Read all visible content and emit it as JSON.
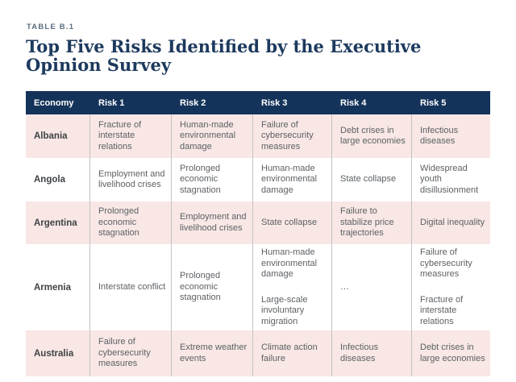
{
  "page": {
    "label": "TABLE B.1",
    "title": "Top Five Risks Identified by the Executive Opinion Survey"
  },
  "colors": {
    "navy": "#14335a",
    "title_navy": "#1d3a5e",
    "label_gray": "#5d6e7e",
    "pink": "#f8e7e5",
    "cell_text": "#5d6165",
    "economy_text": "#3f4246",
    "divider": "#c3c3c3",
    "dash": "#b6b9bb",
    "header_text": "#ffffff"
  },
  "table": {
    "headers": [
      "Economy",
      "Risk 1",
      "Risk 2",
      "Risk 3",
      "Risk 4",
      "Risk 5"
    ],
    "rows": [
      {
        "economy": "Albania",
        "risks": [
          [
            "Fracture of interstate relations"
          ],
          [
            "Human-made environmental damage"
          ],
          [
            "Failure of cybersecurity measures"
          ],
          [
            "Debt crises in large economies"
          ],
          [
            "Infectious diseases"
          ]
        ]
      },
      {
        "economy": "Angola",
        "risks": [
          [
            "Employment and livelihood crises"
          ],
          [
            "Prolonged economic stagnation"
          ],
          [
            "Human-made environmental damage"
          ],
          [
            "State collapse"
          ],
          [
            "Widespread youth disillusionment"
          ]
        ]
      },
      {
        "economy": "Argentina",
        "risks": [
          [
            "Prolonged economic stagnation"
          ],
          [
            "Employment and livelihood crises"
          ],
          [
            "State collapse"
          ],
          [
            "Failure to stabilize price trajectories"
          ],
          [
            "Digital inequality"
          ]
        ]
      },
      {
        "economy": "Armenia",
        "risks": [
          [
            "Interstate conflict"
          ],
          [
            "Prolonged economic stagnation"
          ],
          [
            "Human-made environmental damage",
            "Large-scale involuntary migration"
          ],
          [
            "…"
          ],
          [
            "Failure of cybersecurity measures",
            "Fracture of interstate relations"
          ]
        ]
      },
      {
        "economy": "Australia",
        "risks": [
          [
            "Failure of cybersecurity measures"
          ],
          [
            "Extreme weather events"
          ],
          [
            "Climate action failure"
          ],
          [
            "Infectious diseases"
          ],
          [
            "Debt crises in large economies"
          ]
        ]
      }
    ]
  }
}
